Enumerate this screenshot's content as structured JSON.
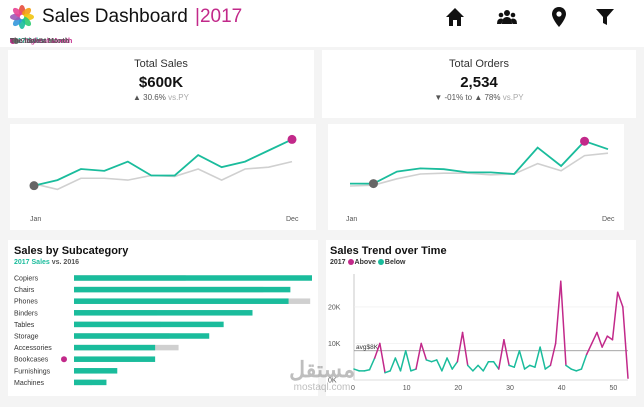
{
  "header": {
    "title": "Sales Dashboard",
    "year": "2017",
    "icons": [
      "home-icon",
      "users-icon",
      "location-pin-icon",
      "filter-icon"
    ]
  },
  "legend_bar": {
    "part1": "2017 Sales",
    "part2": " vs. 2016 Sales",
    "part3": "The highest Month",
    "part4": "The lowest Month"
  },
  "kpi_sales": {
    "title": "Total Sales",
    "value": "$600K",
    "delta_pct": "30.6%",
    "delta_suffix": "vs.PY"
  },
  "kpi_orders": {
    "title": "Total Orders",
    "value": "2,534",
    "delta_a": "-01%",
    "delta_mid": "to",
    "delta_b": "78%",
    "delta_suffix": "vs.PY"
  },
  "subcat": {
    "title": "Sales by Subcategory",
    "sub_a": "2017 Sales",
    "sub_b": " vs. 2016"
  },
  "trend": {
    "title": "Sales Trend over Time",
    "legend_year": "2017",
    "legend_above": "Above",
    "legend_below": "Below"
  },
  "watermark": {
    "arabic": "مستقل",
    "latin": "mostaql.com"
  },
  "colors": {
    "teal": "#1abc9c",
    "magenta": "#c2298a",
    "grey": "#d0d0d0",
    "dark": "#666666"
  },
  "chart_data": [
    {
      "type": "line",
      "id": "monthly-sales",
      "x_labels": [
        "Jan",
        "Dec"
      ],
      "x": [
        1,
        2,
        3,
        4,
        5,
        6,
        7,
        8,
        9,
        10,
        11,
        12
      ],
      "series": [
        {
          "role": "2017",
          "values": [
            22,
            28,
            40,
            38,
            48,
            33,
            33,
            55,
            42,
            48,
            60,
            72
          ]
        },
        {
          "role": "2016",
          "values": [
            24,
            18,
            30,
            30,
            28,
            33,
            32,
            40,
            28,
            40,
            42,
            48
          ]
        }
      ],
      "highlight_max_index": 11,
      "highlight_min_index": 0,
      "ylim": [
        0,
        80
      ]
    },
    {
      "type": "line",
      "id": "monthly-orders",
      "x_labels": [
        "Jan",
        "Dec"
      ],
      "x": [
        1,
        2,
        3,
        4,
        5,
        6,
        7,
        8,
        9,
        10,
        11,
        12
      ],
      "series": [
        {
          "role": "2017",
          "values": [
            28,
            28,
            43,
            47,
            46,
            42,
            42,
            40,
            73,
            50,
            81,
            71
          ]
        },
        {
          "role": "2016",
          "values": [
            25,
            26,
            34,
            40,
            41,
            41,
            39,
            40,
            53,
            44,
            63,
            66
          ]
        }
      ],
      "highlight_max_index": 10,
      "highlight_min_index": 1,
      "ylim": [
        0,
        100
      ]
    },
    {
      "type": "bar",
      "id": "sales-by-subcategory",
      "categories": [
        "Copiers",
        "Chairs",
        "Phones",
        "Binders",
        "Tables",
        "Storage",
        "Accessories",
        "Bookcases",
        "Furnishings",
        "Machines"
      ],
      "series": [
        {
          "name": "2017 Sales",
          "values": [
            132,
            120,
            119,
            99,
            83,
            75,
            45,
            45,
            24,
            18
          ]
        },
        {
          "name": "2016",
          "values": [
            62,
            105,
            131,
            46,
            48,
            53,
            58,
            34,
            13,
            10
          ]
        }
      ],
      "highlight_index": 7,
      "xlim": [
        0,
        132
      ]
    },
    {
      "type": "line",
      "id": "sales-trend-over-time",
      "yticks": [
        "0K",
        "10K",
        "20K"
      ],
      "xticks": [
        0,
        10,
        20,
        30,
        40,
        50
      ],
      "avg_label": "avg$8K",
      "avg_value": 8,
      "ylim": [
        0,
        29
      ],
      "values": [
        3.0,
        2.5,
        2.5,
        2.8,
        6.0,
        10.0,
        2.0,
        2.5,
        6.0,
        2.5,
        8.0,
        2.5,
        3.0,
        10.0,
        5.5,
        5.0,
        5.5,
        2.5,
        6.0,
        3.0,
        5.0,
        13.0,
        4.0,
        2.5,
        4.0,
        2.5,
        5.0,
        5.0,
        3.0,
        11.0,
        4.0,
        3.5,
        8.0,
        3.0,
        4.0,
        3.5,
        9.0,
        3.0,
        4.0,
        10.0,
        27.0,
        4.0,
        3.0,
        2.5,
        3.0,
        7.0,
        10.0,
        13.0,
        9.0,
        12.0,
        11.0,
        24.0,
        20.0,
        0.5
      ]
    }
  ]
}
